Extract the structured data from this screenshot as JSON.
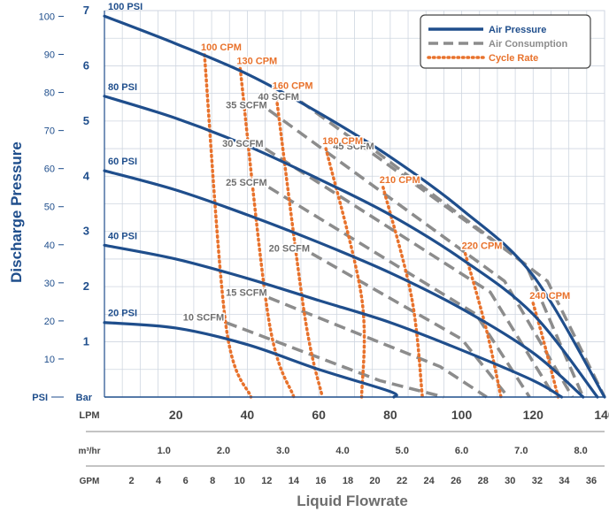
{
  "chart_data": {
    "type": "line",
    "title": "",
    "xlabel": "Liquid Flowrate",
    "ylabel": "Discharge Pressure",
    "xlim": [
      0,
      140
    ],
    "ylim": [
      0,
      7
    ],
    "grid": true,
    "legend_position": "top-right",
    "axes": {
      "psi": {
        "unit": "PSI",
        "ticks": [
          "10",
          "20",
          "30",
          "40",
          "50",
          "60",
          "70",
          "80",
          "90",
          "100"
        ]
      },
      "bar": {
        "unit": "Bar",
        "ticks": [
          "1",
          "2",
          "3",
          "4",
          "5",
          "6",
          "7"
        ]
      },
      "lpm": {
        "unit": "LPM",
        "ticks": [
          "20",
          "40",
          "60",
          "80",
          "100",
          "120",
          "140"
        ]
      },
      "m3hr": {
        "unit": "m³/hr",
        "ticks": [
          "1.0",
          "2.0",
          "3.0",
          "4.0",
          "5.0",
          "6.0",
          "7.0",
          "8.0"
        ]
      },
      "gpm": {
        "unit": "GPM",
        "ticks": [
          "2",
          "4",
          "6",
          "8",
          "10",
          "12",
          "14",
          "16",
          "18",
          "20",
          "22",
          "24",
          "26",
          "28",
          "30",
          "32",
          "34",
          "36"
        ]
      }
    },
    "legend": [
      {
        "name": "Air Pressure",
        "style": "solid",
        "color": "#1f4e8c"
      },
      {
        "name": "Air Consumption",
        "style": "dashed",
        "color": "#8c8c8c"
      },
      {
        "name": "Cycle Rate",
        "style": "dotted",
        "color": "#e8722c"
      }
    ],
    "colors": {
      "pressure": "#1f4e8c",
      "consumption": "#8c8c8c",
      "cycle": "#e8722c",
      "axis_text": "#1f4e8c",
      "grid": "#cfd6e0"
    },
    "pressure_curves": [
      {
        "label": "100 PSI",
        "points": [
          [
            0,
            6.9
          ],
          [
            20,
            6.4
          ],
          [
            40,
            5.85
          ],
          [
            60,
            5.15
          ],
          [
            80,
            4.35
          ],
          [
            100,
            3.4
          ],
          [
            120,
            2.2
          ],
          [
            140,
            0
          ]
        ]
      },
      {
        "label": "80 PSI",
        "points": [
          [
            0,
            5.45
          ],
          [
            20,
            5.05
          ],
          [
            40,
            4.55
          ],
          [
            60,
            3.95
          ],
          [
            80,
            3.3
          ],
          [
            100,
            2.5
          ],
          [
            120,
            1.5
          ],
          [
            138,
            0
          ]
        ]
      },
      {
        "label": "60 PSI",
        "points": [
          [
            0,
            4.1
          ],
          [
            20,
            3.75
          ],
          [
            40,
            3.3
          ],
          [
            60,
            2.8
          ],
          [
            80,
            2.25
          ],
          [
            100,
            1.6
          ],
          [
            120,
            0.8
          ],
          [
            134,
            0
          ]
        ]
      },
      {
        "label": "40 PSI",
        "points": [
          [
            0,
            2.75
          ],
          [
            20,
            2.5
          ],
          [
            40,
            2.15
          ],
          [
            60,
            1.75
          ],
          [
            80,
            1.35
          ],
          [
            100,
            0.85
          ],
          [
            120,
            0.3
          ],
          [
            128,
            0
          ]
        ]
      },
      {
        "label": "20 PSI",
        "points": [
          [
            0,
            1.35
          ],
          [
            20,
            1.25
          ],
          [
            40,
            0.95
          ],
          [
            60,
            0.5
          ],
          [
            80,
            0.1
          ],
          [
            81,
            0
          ]
        ]
      }
    ],
    "consumption_curves": [
      {
        "label": "10 SCFM",
        "points": [
          [
            34,
            1.35
          ],
          [
            77,
            0.3
          ],
          [
            95,
            0
          ]
        ]
      },
      {
        "label": "15 SCFM",
        "points": [
          [
            46,
            1.8
          ],
          [
            94,
            0.55
          ],
          [
            107,
            0
          ]
        ]
      },
      {
        "label": "20 SCFM",
        "points": [
          [
            58,
            2.6
          ],
          [
            100,
            1.05
          ],
          [
            113,
            0
          ]
        ]
      },
      {
        "label": "25 SCFM",
        "points": [
          [
            46,
            3.8
          ],
          [
            104,
            1.5
          ],
          [
            119,
            0
          ]
        ]
      },
      {
        "label": "30 SCFM",
        "points": [
          [
            45,
            4.5
          ],
          [
            108,
            1.9
          ],
          [
            126,
            0
          ]
        ]
      },
      {
        "label": "35 SCFM",
        "points": [
          [
            46,
            5.2
          ],
          [
            112,
            2.1
          ],
          [
            131,
            0
          ]
        ]
      },
      {
        "label": "40 SCFM",
        "points": [
          [
            55,
            5.35
          ],
          [
            118,
            2.4
          ],
          [
            134,
            0
          ]
        ]
      },
      {
        "label": "45 SCFM",
        "points": [
          [
            76,
            4.45
          ],
          [
            124,
            2.1
          ],
          [
            140,
            0
          ]
        ]
      }
    ],
    "cycle_curves": [
      {
        "label": "100 CPM",
        "points": [
          [
            28,
            6.2
          ],
          [
            34,
            1.3
          ],
          [
            41,
            0
          ]
        ]
      },
      {
        "label": "130 CPM",
        "points": [
          [
            38,
            5.95
          ],
          [
            46,
            1.4
          ],
          [
            53,
            0
          ]
        ]
      },
      {
        "label": "160 CPM",
        "points": [
          [
            48,
            5.5
          ],
          [
            56,
            1.5
          ],
          [
            61,
            0
          ]
        ]
      },
      {
        "label": "180 CPM",
        "points": [
          [
            62,
            4.5
          ],
          [
            72,
            1.8
          ],
          [
            72,
            0
          ]
        ]
      },
      {
        "label": "210 CPM",
        "points": [
          [
            78,
            3.8
          ],
          [
            86,
            1.8
          ],
          [
            89,
            0
          ]
        ]
      },
      {
        "label": "220 CPM",
        "points": [
          [
            101,
            2.6
          ],
          [
            107,
            1.2
          ],
          [
            111,
            0
          ]
        ]
      },
      {
        "label": "240 CPM",
        "points": [
          [
            120,
            1.7
          ],
          [
            123,
            1.0
          ],
          [
            127,
            0
          ]
        ]
      }
    ]
  }
}
